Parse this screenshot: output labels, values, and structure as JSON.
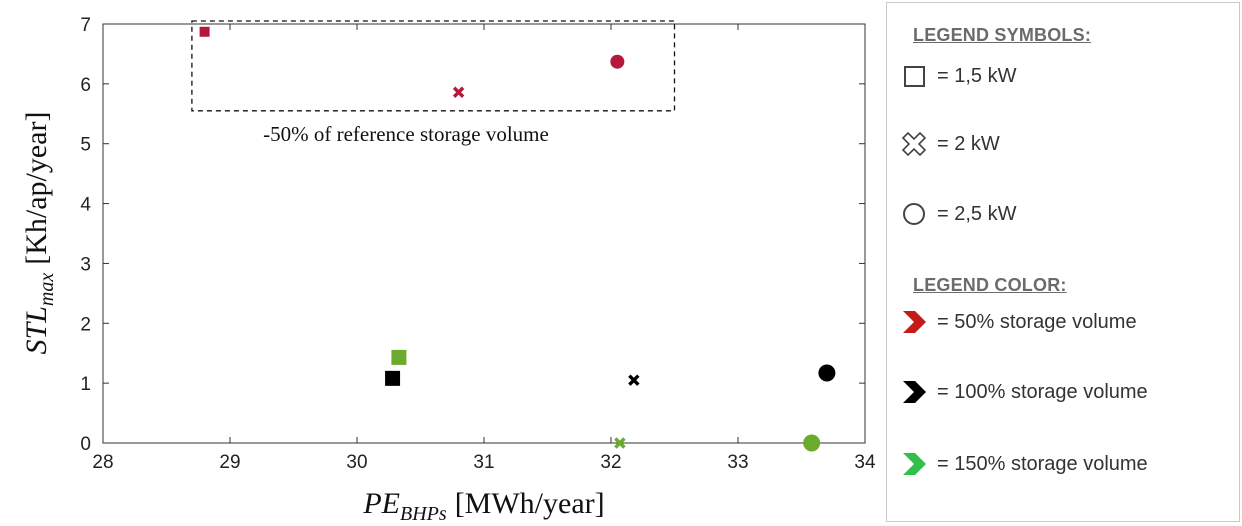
{
  "chart_data": {
    "type": "scatter",
    "xlabel": "PE_BHPs [MWh/year]",
    "ylabel": "STL_max [Kh/ap/year]",
    "xlim": [
      28,
      34
    ],
    "ylim": [
      0,
      7
    ],
    "xticks": [
      "28",
      "29",
      "30",
      "31",
      "32",
      "33",
      "34"
    ],
    "yticks": [
      "0",
      "1",
      "2",
      "3",
      "4",
      "5",
      "6",
      "7"
    ],
    "grid": false,
    "annotation": "-50% of reference storage volume",
    "highlight_box": {
      "x": [
        28.7,
        32.5
      ],
      "y": [
        5.55,
        7.05
      ]
    },
    "points": [
      {
        "x": 28.8,
        "y": 6.87,
        "symbol": "square",
        "color": "#b5183b",
        "size": "small"
      },
      {
        "x": 30.8,
        "y": 5.86,
        "symbol": "cross",
        "color": "#b5183b",
        "size": "small"
      },
      {
        "x": 32.05,
        "y": 6.37,
        "symbol": "circle",
        "color": "#b5183b",
        "size": "small"
      },
      {
        "x": 30.28,
        "y": 1.08,
        "symbol": "square",
        "color": "#000000",
        "size": "large"
      },
      {
        "x": 32.18,
        "y": 1.05,
        "symbol": "cross",
        "color": "#000000",
        "size": "small"
      },
      {
        "x": 33.7,
        "y": 1.17,
        "symbol": "circle",
        "color": "#000000",
        "size": "large"
      },
      {
        "x": 30.33,
        "y": 1.43,
        "symbol": "square",
        "color": "#6aaa2f",
        "size": "large"
      },
      {
        "x": 32.07,
        "y": 0.0,
        "symbol": "cross",
        "color": "#6aaa2f",
        "size": "small"
      },
      {
        "x": 33.58,
        "y": 0.0,
        "symbol": "circle",
        "color": "#6aaa2f",
        "size": "large"
      }
    ]
  },
  "axis_text": {
    "y_main": "STL",
    "y_sub": "max",
    "y_unit": "[Kh/ap/year]",
    "x_main": "PE",
    "x_sub": "BHPs",
    "x_unit": "[MWh/year]"
  },
  "legend": {
    "symbols_title": "LEGEND SYMBOLS:",
    "symbol_items": [
      {
        "icon": "square-outline-icon",
        "label": "= 1,5 kW"
      },
      {
        "icon": "cross-outline-icon",
        "label": "= 2 kW"
      },
      {
        "icon": "circle-outline-icon",
        "label": "= 2,5 kW"
      }
    ],
    "color_title": "LEGEND COLOR:",
    "color_items": [
      {
        "icon": "chevron-red-icon",
        "color": "#c41a1a",
        "label": "= 50% storage volume"
      },
      {
        "icon": "chevron-black-icon",
        "color": "#000000",
        "label": "= 100% storage volume"
      },
      {
        "icon": "chevron-green-icon",
        "color": "#2fbf4a",
        "label": "= 150% storage volume"
      }
    ]
  }
}
